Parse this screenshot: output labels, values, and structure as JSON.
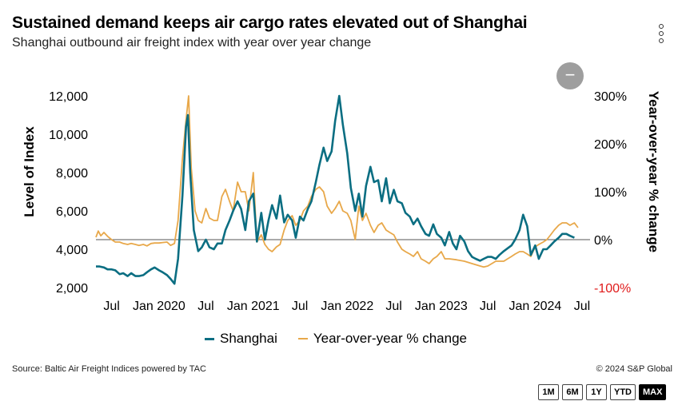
{
  "header": {
    "title": "Sustained demand keeps air cargo rates elevated out of Shanghai",
    "subtitle": "Shanghai outbound air freight index with year over year change"
  },
  "footer": {
    "source": "Source: Baltic Air Freight Indices powered by TAC",
    "copyright": "© 2024 S&P Global"
  },
  "range_buttons": [
    {
      "label": "1M",
      "active": false
    },
    {
      "label": "6M",
      "active": false
    },
    {
      "label": "1Y",
      "active": false
    },
    {
      "label": "YTD",
      "active": false
    },
    {
      "label": "MAX",
      "active": true
    }
  ],
  "zoom_button": {
    "label": "−"
  },
  "colors": {
    "shanghai": "#0b6e82",
    "yoy": "#e8a84a",
    "negative_tick": "#e01b1b",
    "zero_line": "#555555"
  },
  "chart_data": {
    "type": "line",
    "title": "Sustained demand keeps air cargo rates elevated out of Shanghai",
    "subtitle": "Shanghai outbound air freight index with year over year change",
    "xlabel": "",
    "ylabel_left": "Level of Index",
    "ylabel_right": "Year-over-year % change",
    "x_range": [
      "2019-05",
      "2024-08"
    ],
    "x_ticks": [
      {
        "date": "2019-07",
        "label": "Jul"
      },
      {
        "date": "2020-01",
        "label": "Jan 2020"
      },
      {
        "date": "2020-07",
        "label": "Jul"
      },
      {
        "date": "2021-01",
        "label": "Jan 2021"
      },
      {
        "date": "2021-07",
        "label": "Jul"
      },
      {
        "date": "2022-01",
        "label": "Jan 2022"
      },
      {
        "date": "2022-07",
        "label": "Jul"
      },
      {
        "date": "2023-01",
        "label": "Jan 2023"
      },
      {
        "date": "2023-07",
        "label": "Jul"
      },
      {
        "date": "2024-01",
        "label": "Jan 2024"
      },
      {
        "date": "2024-07",
        "label": "Jul"
      }
    ],
    "ylim_left": [
      2000,
      12000
    ],
    "yticks_left": [
      "12,000",
      "10,000",
      "8,000",
      "6,000",
      "4,000",
      "2,000"
    ],
    "ylim_right": [
      -100,
      300
    ],
    "yticks_right": [
      "300%",
      "200%",
      "100%",
      "0%",
      "-100%"
    ],
    "grid": false,
    "legend": "bottom",
    "series": [
      {
        "name": "Shanghai",
        "axis": "left",
        "points": [
          [
            "2019-05-01",
            3100
          ],
          [
            "2019-05-15",
            3100
          ],
          [
            "2019-06-01",
            3050
          ],
          [
            "2019-06-15",
            2950
          ],
          [
            "2019-07-01",
            2950
          ],
          [
            "2019-07-15",
            2900
          ],
          [
            "2019-08-01",
            2700
          ],
          [
            "2019-08-15",
            2750
          ],
          [
            "2019-09-01",
            2600
          ],
          [
            "2019-09-15",
            2750
          ],
          [
            "2019-10-01",
            2600
          ],
          [
            "2019-10-15",
            2600
          ],
          [
            "2019-11-01",
            2650
          ],
          [
            "2019-11-15",
            2800
          ],
          [
            "2019-12-01",
            2950
          ],
          [
            "2019-12-15",
            3050
          ],
          [
            "2020-01-01",
            2900
          ],
          [
            "2020-01-15",
            2800
          ],
          [
            "2020-02-01",
            2650
          ],
          [
            "2020-02-15",
            2450
          ],
          [
            "2020-03-01",
            2200
          ],
          [
            "2020-03-15",
            3500
          ],
          [
            "2020-04-01",
            6800
          ],
          [
            "2020-04-15",
            10400
          ],
          [
            "2020-04-22",
            11000
          ],
          [
            "2020-05-01",
            8000
          ],
          [
            "2020-05-15",
            5000
          ],
          [
            "2020-06-01",
            3900
          ],
          [
            "2020-06-15",
            4100
          ],
          [
            "2020-07-01",
            4500
          ],
          [
            "2020-07-15",
            4100
          ],
          [
            "2020-08-01",
            4000
          ],
          [
            "2020-08-15",
            4300
          ],
          [
            "2020-09-01",
            4300
          ],
          [
            "2020-09-15",
            5000
          ],
          [
            "2020-10-01",
            5500
          ],
          [
            "2020-10-15",
            6000
          ],
          [
            "2020-11-01",
            6500
          ],
          [
            "2020-11-15",
            6100
          ],
          [
            "2020-12-01",
            5000
          ],
          [
            "2020-12-15",
            6500
          ],
          [
            "2021-01-01",
            6900
          ],
          [
            "2021-01-15",
            4400
          ],
          [
            "2021-02-01",
            5900
          ],
          [
            "2021-02-15",
            4500
          ],
          [
            "2021-03-01",
            5500
          ],
          [
            "2021-03-15",
            6300
          ],
          [
            "2021-04-01",
            5600
          ],
          [
            "2021-04-15",
            6800
          ],
          [
            "2021-05-01",
            5400
          ],
          [
            "2021-05-15",
            5800
          ],
          [
            "2021-06-01",
            5500
          ],
          [
            "2021-06-15",
            4600
          ],
          [
            "2021-07-01",
            5700
          ],
          [
            "2021-07-15",
            5500
          ],
          [
            "2021-08-01",
            6100
          ],
          [
            "2021-08-15",
            6500
          ],
          [
            "2021-09-01",
            7500
          ],
          [
            "2021-09-15",
            8400
          ],
          [
            "2021-10-01",
            9300
          ],
          [
            "2021-10-15",
            8600
          ],
          [
            "2021-11-01",
            9100
          ],
          [
            "2021-11-15",
            10700
          ],
          [
            "2021-12-01",
            12000
          ],
          [
            "2021-12-15",
            10500
          ],
          [
            "2022-01-01",
            9000
          ],
          [
            "2022-01-15",
            7200
          ],
          [
            "2022-02-01",
            6000
          ],
          [
            "2022-02-15",
            6900
          ],
          [
            "2022-03-01",
            5700
          ],
          [
            "2022-03-15",
            7300
          ],
          [
            "2022-04-01",
            8300
          ],
          [
            "2022-04-15",
            7500
          ],
          [
            "2022-05-01",
            7600
          ],
          [
            "2022-05-15",
            6500
          ],
          [
            "2022-06-01",
            7700
          ],
          [
            "2022-06-15",
            6400
          ],
          [
            "2022-07-01",
            7100
          ],
          [
            "2022-07-15",
            6500
          ],
          [
            "2022-08-01",
            6400
          ],
          [
            "2022-08-15",
            5900
          ],
          [
            "2022-09-01",
            5700
          ],
          [
            "2022-09-15",
            5300
          ],
          [
            "2022-10-01",
            5600
          ],
          [
            "2022-10-15",
            5200
          ],
          [
            "2022-11-01",
            4800
          ],
          [
            "2022-11-15",
            4700
          ],
          [
            "2022-12-01",
            5300
          ],
          [
            "2022-12-15",
            4800
          ],
          [
            "2023-01-01",
            4600
          ],
          [
            "2023-01-15",
            4200
          ],
          [
            "2023-02-01",
            4900
          ],
          [
            "2023-02-15",
            4300
          ],
          [
            "2023-03-01",
            4000
          ],
          [
            "2023-03-15",
            4700
          ],
          [
            "2023-04-01",
            4400
          ],
          [
            "2023-04-15",
            3900
          ],
          [
            "2023-05-01",
            3600
          ],
          [
            "2023-05-15",
            3500
          ],
          [
            "2023-06-01",
            3400
          ],
          [
            "2023-06-15",
            3500
          ],
          [
            "2023-07-01",
            3600
          ],
          [
            "2023-07-15",
            3600
          ],
          [
            "2023-08-01",
            3500
          ],
          [
            "2023-08-15",
            3700
          ],
          [
            "2023-09-01",
            3900
          ],
          [
            "2023-10-01",
            4200
          ],
          [
            "2023-10-15",
            4500
          ],
          [
            "2023-11-01",
            5000
          ],
          [
            "2023-11-15",
            5800
          ],
          [
            "2023-12-01",
            5200
          ],
          [
            "2023-12-15",
            3700
          ],
          [
            "2024-01-01",
            4200
          ],
          [
            "2024-01-15",
            3500
          ],
          [
            "2024-02-01",
            4000
          ],
          [
            "2024-02-15",
            4000
          ],
          [
            "2024-03-01",
            4200
          ],
          [
            "2024-03-15",
            4400
          ],
          [
            "2024-04-01",
            4600
          ],
          [
            "2024-04-15",
            4800
          ],
          [
            "2024-05-01",
            4800
          ],
          [
            "2024-05-15",
            4700
          ],
          [
            "2024-06-01",
            4600
          ]
        ]
      },
      {
        "name": "Year-over-year % change",
        "axis": "right",
        "points": [
          [
            "2019-05-01",
            5
          ],
          [
            "2019-05-10",
            18
          ],
          [
            "2019-05-20",
            8
          ],
          [
            "2019-06-01",
            15
          ],
          [
            "2019-06-15",
            7
          ],
          [
            "2019-07-01",
            0
          ],
          [
            "2019-07-15",
            -5
          ],
          [
            "2019-08-01",
            -5
          ],
          [
            "2019-08-15",
            -8
          ],
          [
            "2019-09-01",
            -10
          ],
          [
            "2019-09-15",
            -8
          ],
          [
            "2019-10-01",
            -10
          ],
          [
            "2019-10-15",
            -12
          ],
          [
            "2019-11-01",
            -10
          ],
          [
            "2019-11-15",
            -13
          ],
          [
            "2019-12-01",
            -8
          ],
          [
            "2019-12-15",
            -7
          ],
          [
            "2020-01-01",
            -7
          ],
          [
            "2020-01-15",
            -6
          ],
          [
            "2020-02-01",
            -5
          ],
          [
            "2020-02-15",
            -12
          ],
          [
            "2020-03-01",
            -8
          ],
          [
            "2020-03-15",
            40
          ],
          [
            "2020-04-01",
            170
          ],
          [
            "2020-04-15",
            250
          ],
          [
            "2020-04-25",
            300
          ],
          [
            "2020-05-05",
            150
          ],
          [
            "2020-05-20",
            60
          ],
          [
            "2020-06-01",
            40
          ],
          [
            "2020-06-15",
            35
          ],
          [
            "2020-07-01",
            65
          ],
          [
            "2020-07-15",
            45
          ],
          [
            "2020-08-01",
            40
          ],
          [
            "2020-08-15",
            40
          ],
          [
            "2020-09-01",
            90
          ],
          [
            "2020-09-15",
            105
          ],
          [
            "2020-10-01",
            80
          ],
          [
            "2020-10-15",
            60
          ],
          [
            "2020-11-01",
            120
          ],
          [
            "2020-11-15",
            100
          ],
          [
            "2020-12-01",
            100
          ],
          [
            "2020-12-15",
            60
          ],
          [
            "2021-01-01",
            140
          ],
          [
            "2021-01-15",
            -5
          ],
          [
            "2021-02-01",
            10
          ],
          [
            "2021-02-15",
            -10
          ],
          [
            "2021-03-01",
            -20
          ],
          [
            "2021-03-15",
            -25
          ],
          [
            "2021-04-01",
            -15
          ],
          [
            "2021-04-15",
            -10
          ],
          [
            "2021-05-01",
            20
          ],
          [
            "2021-05-15",
            40
          ],
          [
            "2021-06-01",
            50
          ],
          [
            "2021-06-15",
            30
          ],
          [
            "2021-07-01",
            40
          ],
          [
            "2021-07-15",
            60
          ],
          [
            "2021-08-01",
            70
          ],
          [
            "2021-08-15",
            90
          ],
          [
            "2021-09-01",
            105
          ],
          [
            "2021-09-15",
            110
          ],
          [
            "2021-10-01",
            100
          ],
          [
            "2021-10-15",
            70
          ],
          [
            "2021-11-01",
            55
          ],
          [
            "2021-11-15",
            65
          ],
          [
            "2021-12-01",
            80
          ],
          [
            "2021-12-15",
            60
          ],
          [
            "2022-01-01",
            55
          ],
          [
            "2022-01-15",
            40
          ],
          [
            "2022-02-01",
            0
          ],
          [
            "2022-02-15",
            70
          ],
          [
            "2022-03-01",
            40
          ],
          [
            "2022-03-15",
            55
          ],
          [
            "2022-04-01",
            30
          ],
          [
            "2022-04-15",
            15
          ],
          [
            "2022-05-01",
            30
          ],
          [
            "2022-05-15",
            35
          ],
          [
            "2022-06-01",
            20
          ],
          [
            "2022-06-15",
            15
          ],
          [
            "2022-07-01",
            10
          ],
          [
            "2022-07-15",
            -5
          ],
          [
            "2022-08-01",
            -20
          ],
          [
            "2022-08-15",
            -25
          ],
          [
            "2022-09-01",
            -30
          ],
          [
            "2022-09-15",
            -35
          ],
          [
            "2022-10-01",
            -25
          ],
          [
            "2022-10-15",
            -40
          ],
          [
            "2022-11-01",
            -45
          ],
          [
            "2022-11-15",
            -50
          ],
          [
            "2022-12-01",
            -40
          ],
          [
            "2022-12-15",
            -35
          ],
          [
            "2023-01-01",
            -25
          ],
          [
            "2023-01-15",
            -40
          ],
          [
            "2023-02-01",
            -40
          ],
          [
            "2023-03-01",
            -42
          ],
          [
            "2023-04-01",
            -45
          ],
          [
            "2023-05-01",
            -50
          ],
          [
            "2023-06-01",
            -55
          ],
          [
            "2023-06-15",
            -57
          ],
          [
            "2023-07-01",
            -55
          ],
          [
            "2023-08-01",
            -45
          ],
          [
            "2023-09-01",
            -45
          ],
          [
            "2023-10-01",
            -35
          ],
          [
            "2023-10-15",
            -30
          ],
          [
            "2023-11-01",
            -25
          ],
          [
            "2023-11-15",
            -25
          ],
          [
            "2023-12-01",
            -30
          ],
          [
            "2023-12-15",
            -35
          ],
          [
            "2024-01-01",
            -15
          ],
          [
            "2024-01-15",
            -10
          ],
          [
            "2024-02-01",
            -5
          ],
          [
            "2024-02-15",
            0
          ],
          [
            "2024-03-01",
            10
          ],
          [
            "2024-03-15",
            20
          ],
          [
            "2024-04-01",
            30
          ],
          [
            "2024-04-15",
            35
          ],
          [
            "2024-05-01",
            35
          ],
          [
            "2024-05-15",
            30
          ],
          [
            "2024-06-01",
            35
          ],
          [
            "2024-06-15",
            25
          ]
        ]
      }
    ]
  }
}
